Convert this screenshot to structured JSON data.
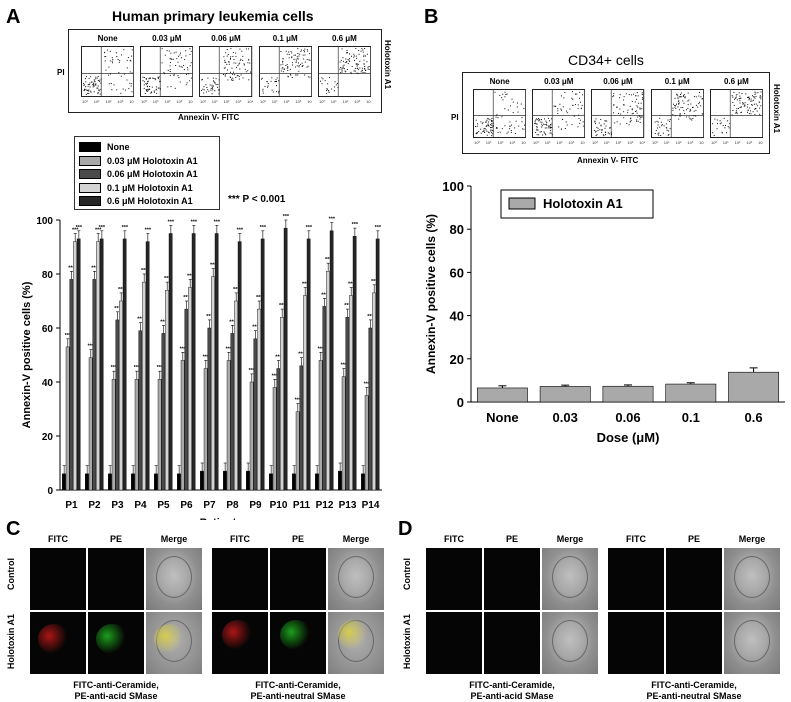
{
  "panels": {
    "A": {
      "letter": "A",
      "title": "Human primary leukemia cells",
      "flow_labels": [
        "None",
        "0.03 μM",
        "0.06 μM",
        "0.1 μM",
        "0.6 μM"
      ],
      "flow_xlabel": "Annexin V- FITC",
      "flow_ylabel": "PI",
      "flow_side": "Holotoxin A1",
      "legend": [
        "None",
        "0.03 μM Holotoxin A1",
        "0.06 μM Holotoxin A1",
        "0.1 μM Holotoxin A1",
        "0.6 μM Holotoxin A1"
      ],
      "pvalue": "*** P < 0.001"
    },
    "B": {
      "letter": "B",
      "title": "CD34+ cells",
      "flow_labels": [
        "None",
        "0.03 μM",
        "0.06 μM",
        "0.1 μM",
        "0.6 μM"
      ],
      "flow_xlabel": "Annexin V- FITC",
      "flow_ylabel": "PI",
      "flow_side": "Holotoxin A1",
      "legend": "Holotoxin A1"
    },
    "C": {
      "letter": "C",
      "col_labels": [
        "FITC",
        "PE",
        "Merge"
      ],
      "row_labels": [
        "Control",
        "Holotoxin A1"
      ],
      "captions": [
        [
          "FITC-anti-Ceramide,",
          "PE-anti-acid SMase"
        ],
        [
          "FITC-anti-Ceramide,",
          "PE-anti-neutral SMase"
        ]
      ]
    },
    "D": {
      "letter": "D",
      "col_labels": [
        "FITC",
        "PE",
        "Merge"
      ],
      "row_labels": [
        "Control",
        "Holotoxin A1"
      ],
      "captions": [
        [
          "FITC-anti-Ceramide,",
          "PE-anti-acid SMase"
        ],
        [
          "FITC-anti-Ceramide,",
          "PE-anti-neutral SMase"
        ]
      ]
    }
  },
  "chart_data": [
    {
      "type": "bar",
      "title": "",
      "xlabel": "Patients",
      "ylabel": "Annexin-V positive cells (%)",
      "ylim": [
        0,
        100
      ],
      "yticks": [
        0,
        20,
        40,
        60,
        80,
        100
      ],
      "categories": [
        "P1",
        "P2",
        "P3",
        "P4",
        "P5",
        "P6",
        "P7",
        "P8",
        "P9",
        "P10",
        "P11",
        "P12",
        "P13",
        "P14"
      ],
      "series": [
        {
          "name": "None",
          "color": "#000000",
          "values": [
            6,
            6,
            6,
            6,
            6,
            6,
            7,
            7,
            7,
            6,
            6,
            6,
            7,
            6
          ]
        },
        {
          "name": "0.03 μM Holotoxin A1",
          "color": "#a9a9a9",
          "values": [
            53,
            49,
            41,
            41,
            41,
            48,
            45,
            48,
            40,
            38,
            29,
            48,
            42,
            35
          ]
        },
        {
          "name": "0.06 μM Holotoxin A1",
          "color": "#4a4a4a",
          "values": [
            78,
            78,
            63,
            59,
            58,
            67,
            60,
            58,
            56,
            45,
            46,
            68,
            64,
            60
          ]
        },
        {
          "name": "0.1 μM Holotoxin A1",
          "color": "#d4d4d4",
          "values": [
            92,
            92,
            70,
            77,
            74,
            75,
            79,
            70,
            67,
            64,
            72,
            81,
            72,
            73
          ]
        },
        {
          "name": "0.6 μM Holotoxin A1",
          "color": "#262626",
          "values": [
            93,
            93,
            93,
            92,
            95,
            95,
            95,
            92,
            93,
            97,
            93,
            96,
            94,
            93
          ]
        }
      ],
      "annotation": "***",
      "legend_position": "top-left"
    },
    {
      "type": "bar",
      "title": "",
      "xlabel": "Dose (μM)",
      "ylabel": "Annexin-V positive cells (%)",
      "ylim": [
        0,
        100
      ],
      "yticks": [
        0,
        20,
        40,
        60,
        80,
        100
      ],
      "categories": [
        "None",
        "0.03",
        "0.06",
        "0.1",
        "0.6"
      ],
      "series": [
        {
          "name": "Holotoxin A1",
          "color": "#a9a9a9",
          "values": [
            6.5,
            7.2,
            7.3,
            8.3,
            13.8
          ],
          "errors": [
            1.0,
            0.6,
            0.6,
            0.6,
            2.0
          ]
        }
      ],
      "legend_position": "top-left"
    }
  ]
}
